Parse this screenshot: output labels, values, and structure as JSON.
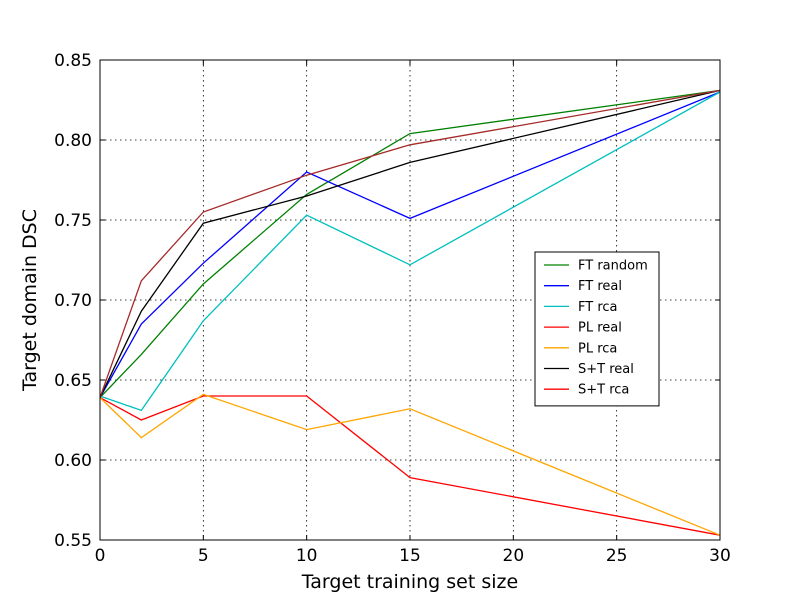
{
  "chart_data": {
    "type": "line",
    "title": "",
    "xlabel": "Target training set size",
    "ylabel": "Target domain DSC",
    "xlim": [
      0,
      30
    ],
    "ylim": [
      0.55,
      0.85
    ],
    "x": [
      0,
      2,
      5,
      10,
      15,
      30
    ],
    "xticks": [
      0,
      5,
      10,
      15,
      20,
      25,
      30
    ],
    "xtick_labels": [
      "0",
      "5",
      "10",
      "15",
      "20",
      "25",
      "30"
    ],
    "yticks": [
      0.55,
      0.6,
      0.65,
      0.7,
      0.75,
      0.8,
      0.85
    ],
    "ytick_labels": [
      "0.55",
      "0.60",
      "0.65",
      "0.70",
      "0.75",
      "0.80",
      "0.85"
    ],
    "grid": true,
    "legend_position": "center-right",
    "series": [
      {
        "name": "FT random",
        "color": "#008000",
        "values": [
          0.639,
          0.666,
          0.71,
          0.766,
          0.804,
          0.831
        ]
      },
      {
        "name": "FT real",
        "color": "#0000ff",
        "values": [
          0.639,
          0.685,
          0.723,
          0.78,
          0.751,
          0.83
        ]
      },
      {
        "name": "FT rca",
        "color": "#00bfbf",
        "values": [
          0.64,
          0.631,
          0.687,
          0.753,
          0.722,
          0.83
        ]
      },
      {
        "name": "PL real",
        "color": "#ff0000",
        "values": [
          0.639,
          0.625,
          0.64,
          0.64,
          0.589,
          0.553
        ]
      },
      {
        "name": "PL rca",
        "color": "#ffa500",
        "values": [
          0.639,
          0.614,
          0.641,
          0.619,
          0.632,
          0.553
        ]
      },
      {
        "name": "S+T real",
        "color": "#000000",
        "values": [
          0.639,
          0.693,
          0.748,
          0.765,
          0.786,
          0.831
        ]
      },
      {
        "name": "S+T rca",
        "color": "#a52a2a",
        "legend_color": "#ff0000",
        "values": [
          0.639,
          0.712,
          0.755,
          0.778,
          0.797,
          0.831
        ]
      }
    ]
  }
}
